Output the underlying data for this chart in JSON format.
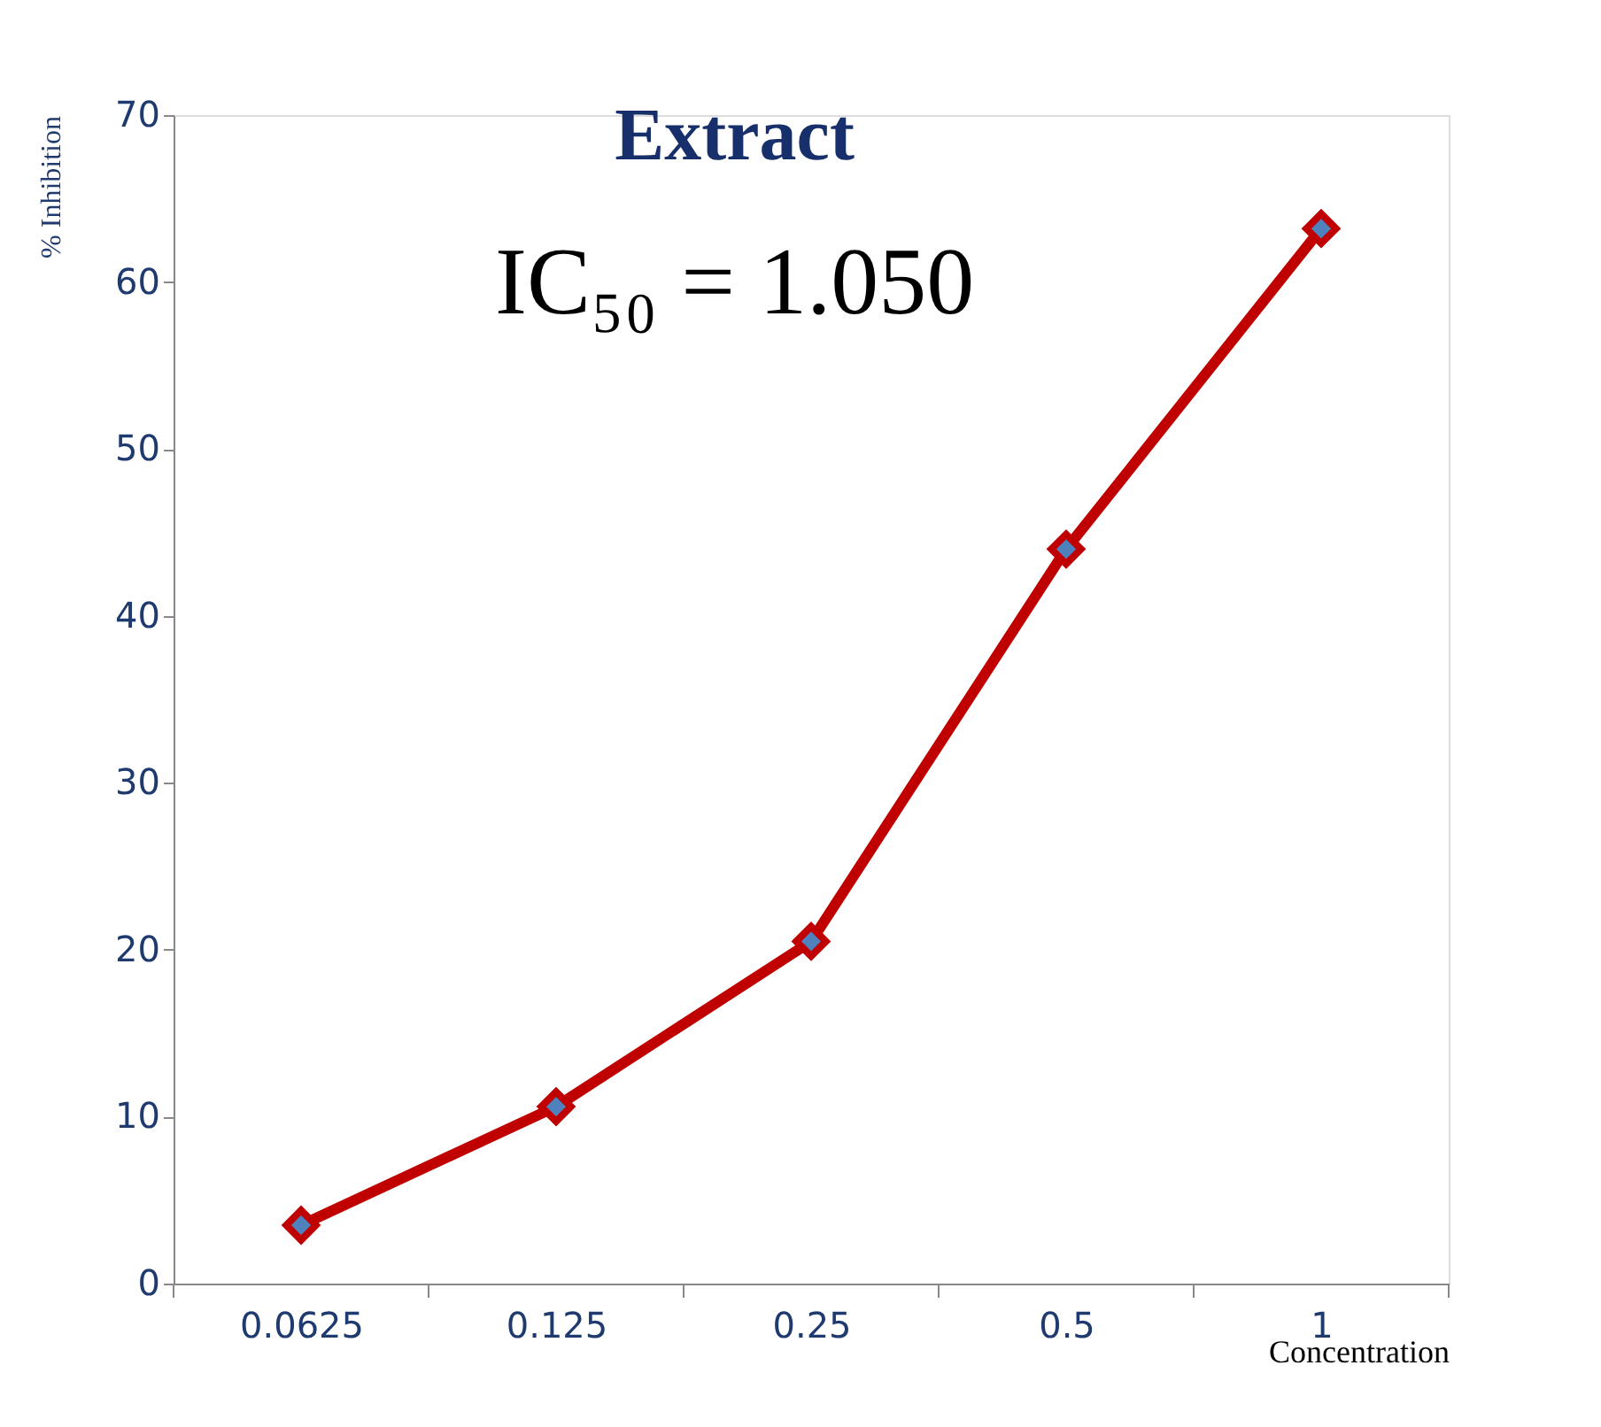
{
  "chart_data": {
    "type": "line",
    "title": "Extract",
    "xlabel": "Concentration",
    "ylabel": "% Inhibition",
    "categories": [
      "0.0625",
      "0.125",
      "0.25",
      "0.5",
      "1"
    ],
    "series": [
      {
        "color": "#c00000",
        "values": [
          3.5,
          10.6,
          20.5,
          44.0,
          63.2
        ]
      }
    ],
    "annotations": [
      "IC₅₀ = 1.050"
    ],
    "ylim": [
      0,
      70
    ],
    "yticks": [
      0,
      10,
      20,
      30,
      40,
      50,
      60,
      70
    ],
    "grid": false,
    "marker": "diamond",
    "line_style": "solid"
  }
}
